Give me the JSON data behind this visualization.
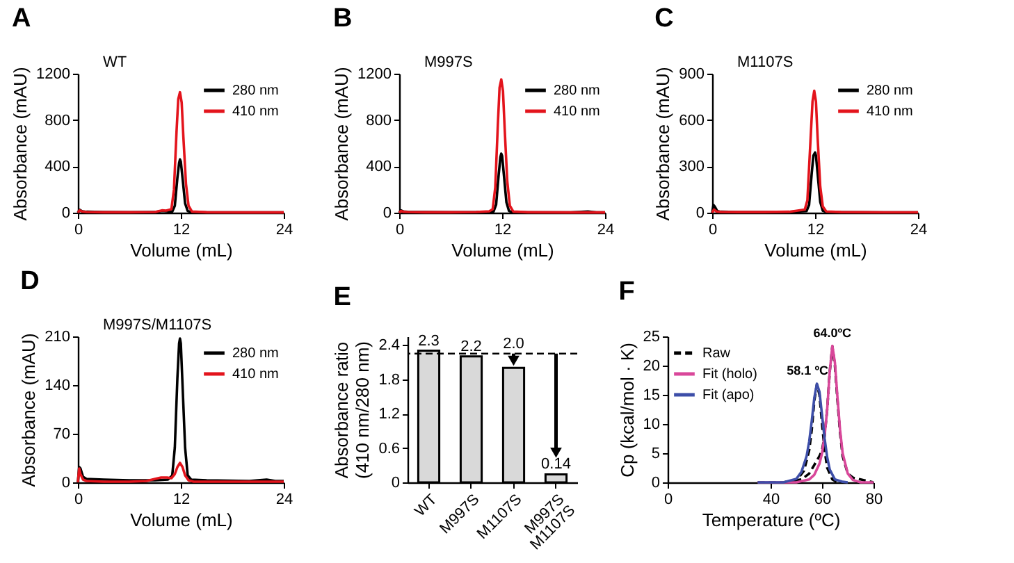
{
  "chart_data": [
    {
      "type": "line",
      "title": "A",
      "annotations": [
        "WT"
      ],
      "xlabel": "Volume (mL)",
      "ylabel": "Absorbance (mAU)",
      "xlim": [
        0,
        24
      ],
      "xticks": [
        0,
        12,
        24
      ],
      "ylim": [
        0,
        1200
      ],
      "yticks": [
        0,
        400,
        800,
        1200
      ],
      "legend": "top right",
      "line_style": "solid",
      "series": [
        {
          "name": "280 nm",
          "color": "#000000",
          "x": [
            0,
            0.2,
            0.5,
            1,
            3,
            6,
            9,
            9.8,
            10.3,
            11,
            11.3,
            11.6,
            11.8,
            11.9,
            12.0,
            12.2,
            12.5,
            12.8,
            13.2,
            15,
            20,
            24
          ],
          "values": [
            0,
            25,
            12,
            8,
            5,
            4,
            5,
            15,
            12,
            8,
            60,
            300,
            430,
            460,
            440,
            300,
            80,
            15,
            5,
            3,
            2,
            2
          ]
        },
        {
          "name": "410 nm",
          "color": "#e3141c",
          "x": [
            0,
            0.2,
            0.5,
            1,
            3,
            6,
            9,
            9.8,
            10.3,
            10.9,
            11.2,
            11.5,
            11.7,
            11.9,
            12.1,
            12.3,
            12.6,
            12.9,
            13.3,
            15,
            20,
            24
          ],
          "values": [
            0,
            20,
            10,
            6,
            4,
            4,
            6,
            20,
            18,
            30,
            200,
            700,
            980,
            1040,
            950,
            650,
            250,
            60,
            10,
            4,
            2,
            2
          ]
        }
      ]
    },
    {
      "type": "line",
      "title": "B",
      "annotations": [
        "M997S"
      ],
      "xlabel": "Volume (mL)",
      "ylabel": "Absorbance (mAU)",
      "xlim": [
        0,
        24
      ],
      "xticks": [
        0,
        12,
        24
      ],
      "ylim": [
        0,
        1200
      ],
      "yticks": [
        0,
        400,
        800,
        1200
      ],
      "legend": "top right",
      "line_style": "solid",
      "series": [
        {
          "name": "280 nm",
          "color": "#000000",
          "x": [
            0,
            0.2,
            0.5,
            1,
            3,
            6,
            9,
            10.5,
            11,
            11.3,
            11.6,
            11.8,
            11.9,
            12.0,
            12.2,
            12.5,
            12.8,
            13.2,
            15,
            20,
            22,
            23,
            24
          ],
          "values": [
            0,
            20,
            10,
            7,
            5,
            4,
            5,
            8,
            10,
            70,
            330,
            480,
            510,
            490,
            330,
            90,
            15,
            5,
            3,
            2,
            10,
            3,
            2
          ]
        },
        {
          "name": "410 nm",
          "color": "#e3141c",
          "x": [
            0,
            0.2,
            0.5,
            1,
            3,
            6,
            9,
            10.5,
            10.9,
            11.2,
            11.5,
            11.7,
            11.9,
            12.1,
            12.3,
            12.6,
            12.9,
            13.3,
            15,
            20,
            24
          ],
          "values": [
            0,
            15,
            8,
            6,
            4,
            4,
            6,
            12,
            30,
            220,
            760,
            1080,
            1150,
            1050,
            720,
            270,
            60,
            10,
            4,
            2,
            2
          ]
        }
      ]
    },
    {
      "type": "line",
      "title": "C",
      "annotations": [
        "M1107S"
      ],
      "xlabel": "Volume (mL)",
      "ylabel": "Absorbance (mAU)",
      "xlim": [
        0,
        24
      ],
      "xticks": [
        0,
        12,
        24
      ],
      "ylim": [
        0,
        900
      ],
      "yticks": [
        0,
        300,
        600,
        900
      ],
      "legend": "top right",
      "line_style": "solid",
      "series": [
        {
          "name": "280 nm",
          "color": "#000000",
          "x": [
            0,
            0.15,
            0.3,
            0.6,
            1,
            3,
            6,
            9,
            11,
            11.3,
            11.6,
            11.8,
            12.0,
            12.1,
            12.3,
            12.6,
            12.9,
            13.3,
            15,
            20,
            24
          ],
          "values": [
            0,
            50,
            40,
            10,
            6,
            4,
            4,
            5,
            10,
            50,
            250,
            370,
            390,
            370,
            250,
            70,
            12,
            5,
            3,
            2,
            2
          ]
        },
        {
          "name": "410 nm",
          "color": "#e3141c",
          "x": [
            0,
            0.2,
            0.5,
            1,
            3,
            6,
            9,
            10.8,
            11.1,
            11.4,
            11.7,
            11.9,
            12.1,
            12.3,
            12.6,
            12.9,
            13.3,
            15,
            20,
            24
          ],
          "values": [
            0,
            20,
            8,
            5,
            4,
            4,
            6,
            20,
            80,
            400,
            720,
            790,
            720,
            480,
            170,
            40,
            8,
            4,
            2,
            2
          ]
        }
      ]
    },
    {
      "type": "line",
      "title": "D",
      "annotations": [
        "M997S/M1107S"
      ],
      "xlabel": "Volume (mL)",
      "ylabel": "Absorbance (mAU)",
      "xlim": [
        0,
        24
      ],
      "xticks": [
        0,
        12,
        24
      ],
      "ylim": [
        0,
        210
      ],
      "yticks": [
        0,
        70,
        140,
        210
      ],
      "legend": "top right",
      "line_style": "solid",
      "series": [
        {
          "name": "280 nm",
          "color": "#000000",
          "x": [
            0,
            0.15,
            0.3,
            0.6,
            1,
            3,
            6,
            9,
            10.5,
            11,
            11.3,
            11.6,
            11.8,
            11.9,
            12.0,
            12.2,
            12.5,
            12.8,
            13.2,
            15,
            20,
            22,
            23,
            24
          ],
          "values": [
            0,
            22,
            20,
            8,
            5,
            4,
            3,
            3,
            4,
            10,
            50,
            150,
            200,
            207,
            200,
            140,
            50,
            10,
            4,
            3,
            2,
            4,
            2,
            2
          ]
        },
        {
          "name": "410 nm",
          "color": "#e3141c",
          "x": [
            0,
            0.15,
            0.3,
            0.6,
            1,
            3,
            6,
            8,
            9,
            9.7,
            10.4,
            10.9,
            11.3,
            11.6,
            11.9,
            12.2,
            12.5,
            12.9,
            13.5,
            15,
            20,
            24
          ],
          "values": [
            0,
            20,
            12,
            4,
            2,
            1,
            1,
            2,
            5,
            7,
            7,
            6,
            12,
            22,
            28,
            22,
            10,
            3,
            1,
            1,
            1,
            1
          ]
        }
      ]
    },
    {
      "type": "bar",
      "title": "E",
      "ylabel": "Absorbance ratio\n(410 nm/280 nm)",
      "categories": [
        "WT",
        "M997S",
        "M1107S",
        "M997S\nM1107S"
      ],
      "values": [
        2.3,
        2.2,
        2.0,
        0.14
      ],
      "value_labels": [
        "2.3",
        "2.2",
        "2.0",
        "0.14"
      ],
      "color": "#d9d9d9",
      "ylim": [
        0,
        2.55
      ],
      "yticks": [
        0,
        0.6,
        1.2,
        1.8,
        2.4
      ],
      "ref_lines": [
        {
          "axis": "y",
          "value": 2.25,
          "color": "#000000",
          "line_style": "dashed"
        }
      ]
    },
    {
      "type": "line",
      "title": "F",
      "xlabel": "Temperature (ºC)",
      "ylabel": "Cp (kcal/mol · K)",
      "xlim": [
        0,
        80
      ],
      "xticks": [
        0,
        40,
        60,
        80
      ],
      "ylim": [
        0,
        25
      ],
      "yticks": [
        0,
        5,
        10,
        15,
        20,
        25
      ],
      "legend": "top left",
      "annotations": [
        {
          "text": "58.1 ºC",
          "x": 58.1,
          "y": 17
        },
        {
          "text": "64.0ºC",
          "x": 64,
          "y": 23.4
        }
      ],
      "series": [
        {
          "name": "Raw",
          "color": "#000000",
          "line_style": "dashed",
          "x": [
            35,
            45,
            50,
            53,
            55,
            56,
            57,
            58,
            59,
            60,
            61,
            62,
            64,
            66
          ],
          "values": [
            0,
            0,
            0.3,
            2,
            5.5,
            9,
            14,
            16.8,
            15,
            10,
            5.5,
            2.5,
            0.5,
            0
          ]
        },
        {
          "color": "#000000",
          "line_style": "dashed",
          "x": [
            45,
            52,
            55,
            57,
            59,
            60,
            61,
            62,
            63,
            64,
            65,
            66,
            67,
            68,
            70,
            72,
            75,
            78,
            80
          ],
          "values": [
            0,
            0.5,
            1.5,
            3,
            4.5,
            5.5,
            8,
            12.5,
            19,
            23.3,
            20,
            14,
            8.5,
            4.5,
            1.5,
            0.8,
            0.5,
            0.2,
            0
          ]
        },
        {
          "name": "Fit (holo)",
          "color": "#d9479a",
          "line_style": "solid",
          "x": [
            35,
            50,
            55,
            57,
            59,
            60,
            61,
            62,
            63,
            64,
            65,
            66,
            67,
            68,
            70,
            72,
            75,
            80
          ],
          "values": [
            0,
            0,
            0.5,
            1.3,
            3.2,
            5,
            8,
            12.5,
            19,
            23.4,
            20.5,
            14.5,
            9,
            5,
            1.5,
            0.4,
            0,
            0
          ]
        },
        {
          "name": "Fit (apo)",
          "color": "#3d4ea8",
          "line_style": "solid",
          "x": [
            35,
            45,
            50,
            52,
            54,
            55,
            56,
            57,
            58,
            59,
            60,
            61,
            62,
            63,
            65,
            68,
            70
          ],
          "values": [
            0,
            0,
            0.6,
            1.8,
            4.5,
            7,
            10.5,
            14.5,
            16.9,
            15.5,
            11.5,
            7.5,
            4.3,
            2.2,
            0.5,
            0.1,
            0
          ]
        }
      ]
    }
  ]
}
